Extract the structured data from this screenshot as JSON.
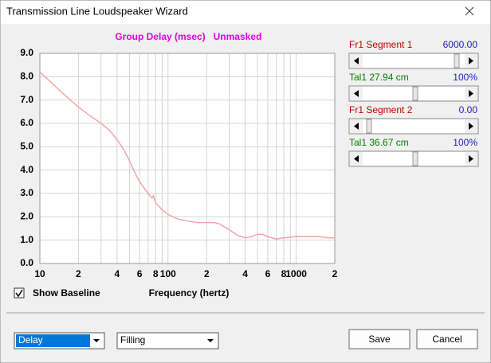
{
  "window": {
    "title": "Transmission Line Loudspeaker Wizard"
  },
  "chart_data": {
    "type": "line",
    "title": "Group Delay (msec)",
    "subtitle": "Unmasked",
    "x_label": "Frequency (hertz)",
    "xscale": "log",
    "xlim": [
      10,
      2000
    ],
    "ylim": [
      0,
      9
    ],
    "grid": true,
    "xticks": [
      10,
      {
        "value": 20,
        "label": "2"
      },
      {
        "value": 40,
        "label": "4"
      },
      {
        "value": 60,
        "label": "6"
      },
      {
        "value": 80,
        "label": "8"
      },
      100,
      {
        "value": 200,
        "label": "2"
      },
      {
        "value": 400,
        "label": "4"
      },
      {
        "value": 600,
        "label": "6"
      },
      {
        "value": 800,
        "label": "8"
      },
      1000,
      {
        "value": 2000,
        "label": "2"
      }
    ],
    "xminor": [
      30,
      50,
      70,
      90,
      300,
      500,
      700,
      900
    ],
    "yticks": [
      {
        "value": 0,
        "label": "0.0"
      },
      {
        "value": 1,
        "label": "1.0"
      },
      {
        "value": 2,
        "label": "2.0"
      },
      {
        "value": 3,
        "label": "3.0"
      },
      {
        "value": 4,
        "label": "4.0"
      },
      {
        "value": 5,
        "label": "5.0"
      },
      {
        "value": 6,
        "label": "6.0"
      },
      {
        "value": 7,
        "label": "7.0"
      },
      {
        "value": 8,
        "label": "8.0"
      },
      {
        "value": 9,
        "label": "9.0"
      }
    ],
    "color": "#f2a6a6",
    "x": [
      10,
      12,
      15,
      20,
      25,
      30,
      35,
      40,
      45,
      50,
      55,
      60,
      70,
      75,
      77,
      80,
      90,
      100,
      120,
      150,
      170,
      200,
      230,
      250,
      300,
      350,
      400,
      450,
      500,
      550,
      600,
      700,
      800,
      1000,
      1500,
      1800,
      2000
    ],
    "values": [
      8.2,
      7.8,
      7.3,
      6.7,
      6.3,
      6.0,
      5.7,
      5.3,
      4.9,
      4.4,
      3.9,
      3.5,
      3.0,
      2.8,
      2.9,
      2.6,
      2.3,
      2.1,
      1.9,
      1.8,
      1.75,
      1.75,
      1.75,
      1.7,
      1.45,
      1.2,
      1.1,
      1.15,
      1.25,
      1.25,
      1.15,
      1.05,
      1.1,
      1.15,
      1.15,
      1.1,
      1.1
    ]
  },
  "sliders": [
    {
      "label": "Fr1  Segment 1",
      "value": "6000.00"
    },
    {
      "label": "Tal1  27.94 cm",
      "value": "100%"
    },
    {
      "label": "Fr1  Segment 2",
      "value": "0.00"
    },
    {
      "label": "Tal1  36.67 cm",
      "value": "100%"
    }
  ],
  "checkbox": {
    "label": "Show Baseline"
  },
  "dropdowns": [
    "Delay",
    "Filling"
  ],
  "buttons": [
    "Save",
    "Cancel"
  ]
}
